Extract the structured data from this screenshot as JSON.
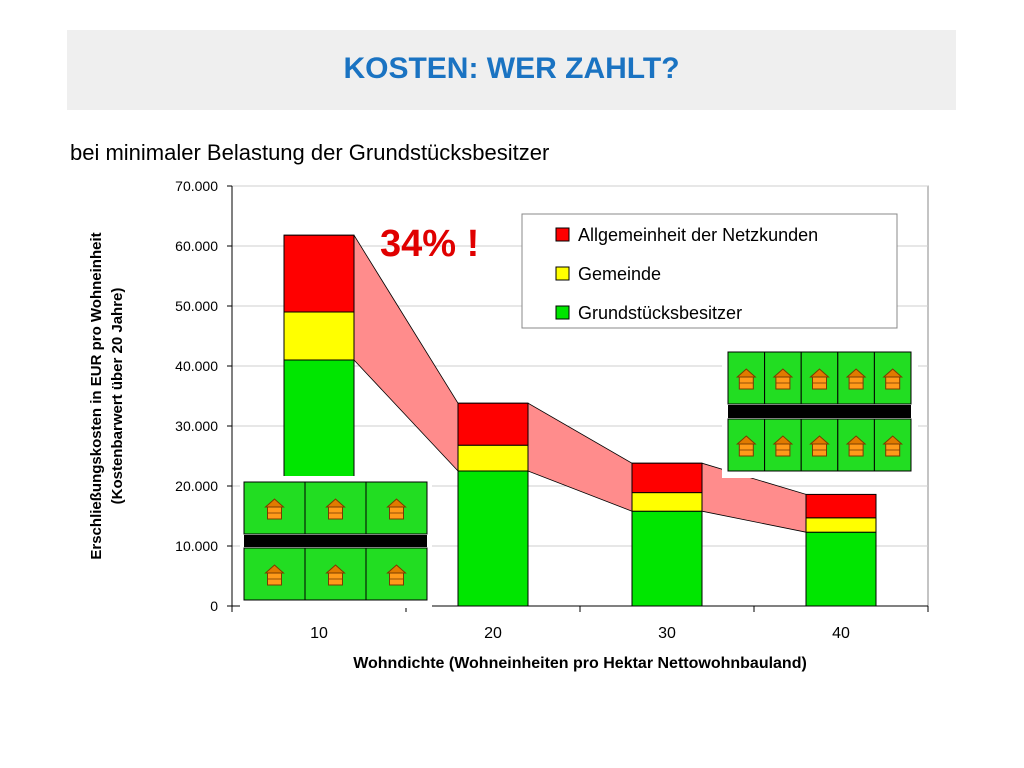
{
  "header": {
    "title": "KOSTEN: WER ZAHLT?"
  },
  "subtitle": "bei minimaler Belastung der Grundstücksbesitzer",
  "callout": {
    "text": "34% !",
    "color": "#e00000"
  },
  "chart_data": {
    "type": "bar",
    "stacked": true,
    "categories": [
      "10",
      "20",
      "30",
      "40"
    ],
    "series": [
      {
        "name": "Grundstücksbesitzer",
        "color": "#00e600",
        "values": [
          41000,
          22500,
          15800,
          12300
        ]
      },
      {
        "name": "Gemeinde",
        "color": "#ffff00",
        "values": [
          8000,
          4300,
          3100,
          2400
        ]
      },
      {
        "name": "Allgemeinheit der Netzkunden",
        "color": "#ff0000",
        "values": [
          12800,
          7000,
          4900,
          3900
        ]
      }
    ],
    "legend_order": [
      "Allgemeinheit der Netzkunden",
      "Gemeinde",
      "Grundstücksbesitzer"
    ],
    "yticks": [
      "0",
      "10.000",
      "20.000",
      "30.000",
      "40.000",
      "50.000",
      "60.000",
      "70.000"
    ],
    "ylim": [
      0,
      70000
    ],
    "xlabel": "Wohndichte (Wohneinheiten pro Hektar Nettowohnbauland)",
    "ylabel_line1": "Erschließungskosten in EUR pro Wohneinheit",
    "ylabel_line2": "(Kostenbarwert über 20 Jahre)",
    "grid": true,
    "legend_position": "top-right",
    "band_color": "#ff8c8c"
  }
}
